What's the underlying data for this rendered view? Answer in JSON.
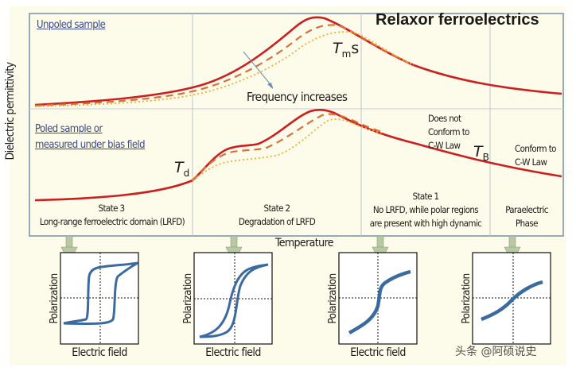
{
  "title": "Relaxor ferroelectrics",
  "y_axis_label": "Dielectric permittivity",
  "x_axis_label": "Temperature",
  "panels": {
    "unpoled_label": "Unpoled sample",
    "poled_label_line1": "Poled sample or",
    "poled_label_line2": "measured under bias field"
  },
  "annotations": {
    "frequency": "Frequency increases",
    "tm": "T",
    "tm_sub": "m",
    "tm_suffix": "s",
    "td": "T",
    "td_sub": "d",
    "tb": "T",
    "tb_sub": "B",
    "cw_not_1": "Does not",
    "cw_not_2": "Conform to",
    "cw_not_3": "C-W Law",
    "cw_yes_1": "Conform to",
    "cw_yes_2": "C-W Law"
  },
  "states": [
    {
      "title": "State 3",
      "desc1": "Long-range ferroelectric domain (LRFD)",
      "desc2": ""
    },
    {
      "title": "State 2",
      "desc1": "Degradation of LRFD",
      "desc2": ""
    },
    {
      "title": "State 1",
      "desc1": "No LRFD, while polar regions",
      "desc2": "are present with high dynamic"
    },
    {
      "title": "",
      "desc1": "Paraelectric",
      "desc2": "Phase"
    }
  ],
  "loops": [
    {
      "type": "square-hysteresis",
      "ylabel": "Polarization",
      "xlabel": "Electric field"
    },
    {
      "type": "slim-hysteresis",
      "ylabel": "Polarization",
      "xlabel": "Electric field"
    },
    {
      "type": "s-curve",
      "ylabel": "Polarization",
      "xlabel": "Electric field"
    },
    {
      "type": "linear-ish",
      "ylabel": "Polarization",
      "xlabel": ""
    }
  ],
  "watermark": "头条 @阿硕说史",
  "colors": {
    "background": "#fdfbea",
    "frame": "#7f95ad",
    "divider": "#bcc6d2",
    "curve_solid": "#cc1f1f",
    "curve_dashed": "#d9703a",
    "curve_dotted": "#f0b030",
    "loop": "#3a6aa0",
    "arrow": "#b9c9a3",
    "link": "#3b4a8c"
  }
}
